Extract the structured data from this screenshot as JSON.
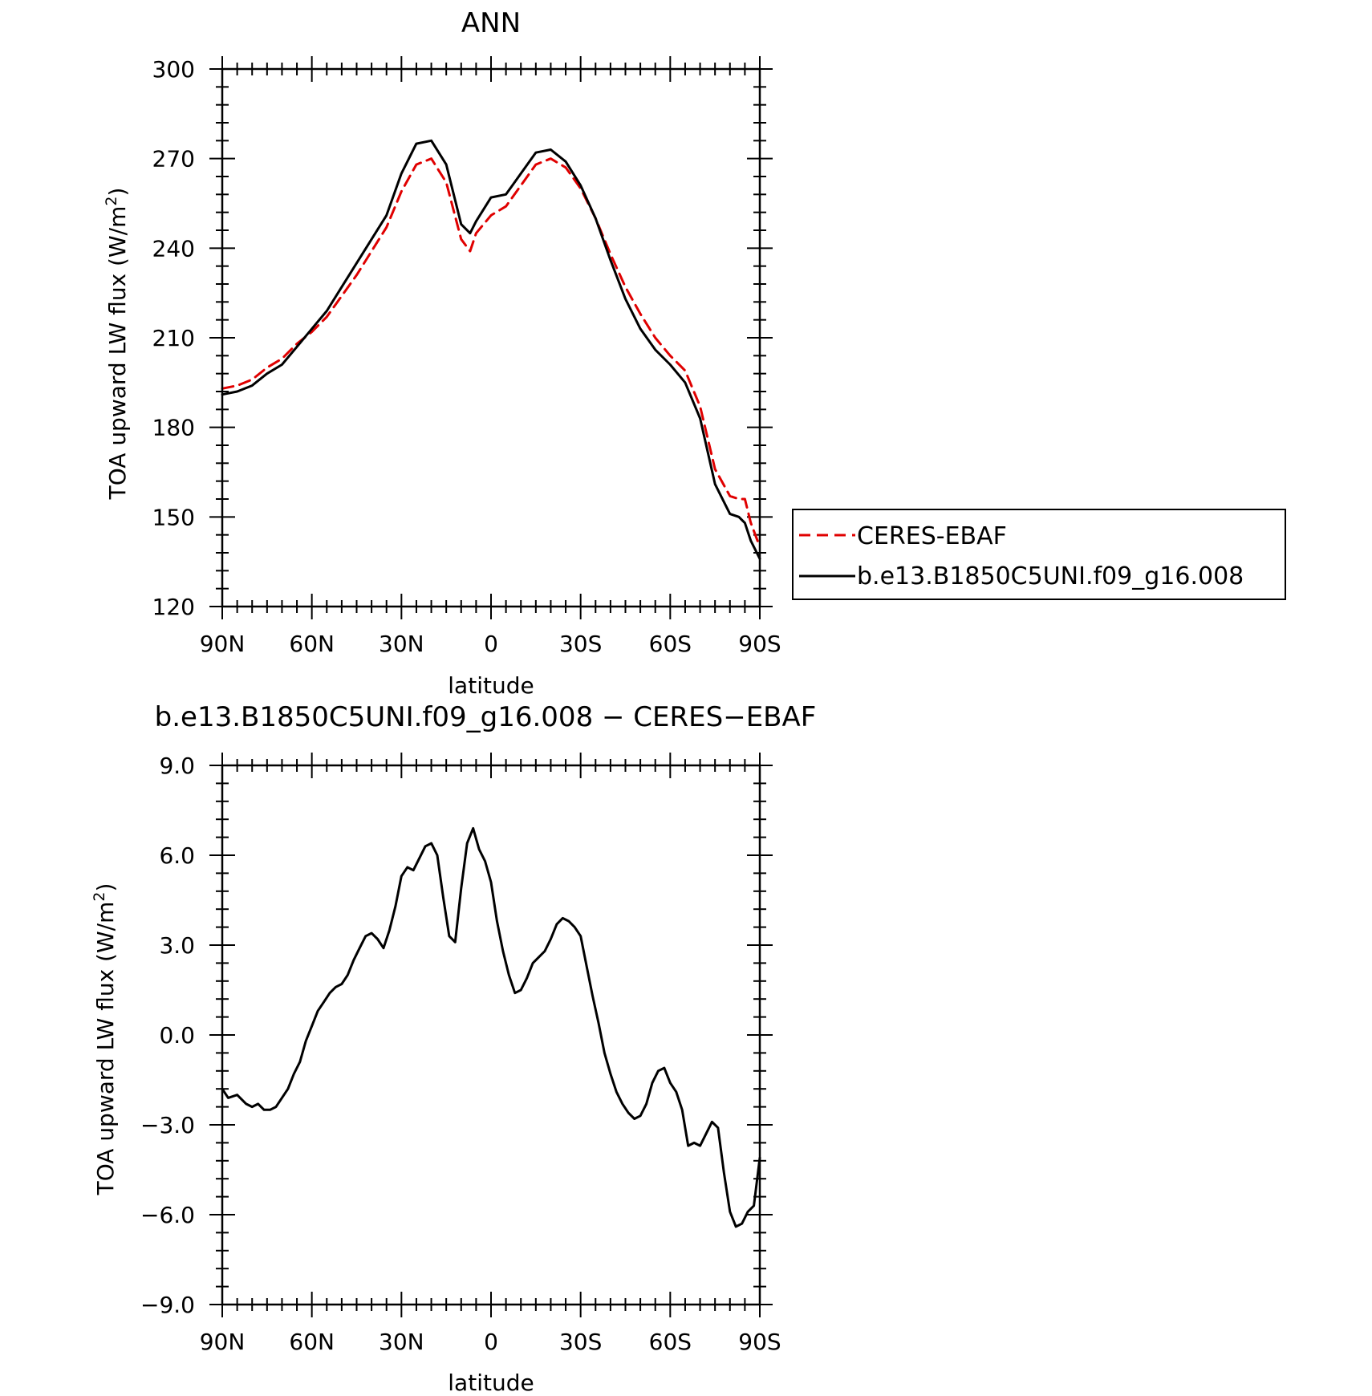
{
  "chart_data": [
    {
      "type": "line",
      "title": "ANN",
      "xlabel": "latitude",
      "ylabel": "TOA upward LW flux (W/m",
      "ylabel_sup": "2",
      "ylabel_end": ")",
      "xlim": [
        90,
        -90
      ],
      "ylim": [
        120,
        300
      ],
      "x_ticks": [
        90,
        60,
        30,
        0,
        -30,
        -60,
        -90
      ],
      "x_tick_labels": [
        "90N",
        "60N",
        "30N",
        "0",
        "30S",
        "60S",
        "90S"
      ],
      "y_ticks": [
        120,
        150,
        180,
        210,
        240,
        270,
        300
      ],
      "y_tick_labels": [
        "120",
        "150",
        "180",
        "210",
        "240",
        "270",
        "300"
      ],
      "grid": false,
      "legend": "right",
      "series": [
        {
          "name": "CERES-EBAF",
          "color": "#e00000",
          "dash": "dashed",
          "x": [
            90,
            85,
            80,
            75,
            70,
            65,
            60,
            55,
            50,
            45,
            40,
            35,
            30,
            25,
            20,
            15,
            10,
            7,
            5,
            0,
            -5,
            -10,
            -15,
            -20,
            -25,
            -30,
            -35,
            -40,
            -45,
            -50,
            -55,
            -60,
            -65,
            -70,
            -75,
            -80,
            -83,
            -85,
            -87,
            -90
          ],
          "y": [
            193,
            194,
            196,
            200,
            203,
            208,
            212,
            217,
            224,
            231,
            239,
            247,
            259,
            268,
            270,
            262,
            243,
            239,
            245,
            251,
            254,
            261,
            268,
            270,
            267,
            260,
            250,
            238,
            227,
            218,
            210,
            204,
            199,
            187,
            166,
            157,
            156,
            156,
            148,
            140
          ],
          "values": [
            193,
            194,
            196,
            200,
            203,
            208,
            212,
            217,
            224,
            231,
            239,
            247,
            259,
            268,
            270,
            262,
            243,
            239,
            245,
            251,
            254,
            261,
            268,
            270,
            267,
            260,
            250,
            238,
            227,
            218,
            210,
            204,
            199,
            187,
            166,
            157,
            156,
            156,
            148,
            140
          ]
        },
        {
          "name": "b.e13.B1850C5UNI.f09_g16.008",
          "color": "#000000",
          "dash": "solid",
          "x": [
            90,
            85,
            80,
            75,
            70,
            65,
            60,
            55,
            50,
            45,
            40,
            35,
            30,
            25,
            20,
            15,
            10,
            7,
            5,
            0,
            -5,
            -10,
            -15,
            -20,
            -25,
            -30,
            -35,
            -40,
            -45,
            -50,
            -55,
            -60,
            -65,
            -70,
            -75,
            -80,
            -83,
            -85,
            -87,
            -90
          ],
          "y": [
            191,
            192,
            194,
            198,
            201,
            207,
            213,
            219,
            227,
            235,
            243,
            251,
            265,
            275,
            276,
            268,
            248,
            245,
            249,
            257,
            258,
            265,
            272,
            273,
            269,
            261,
            250,
            236,
            223,
            213,
            206,
            201,
            195,
            183,
            161,
            151,
            150,
            148,
            142,
            136
          ],
          "values": [
            191,
            192,
            194,
            198,
            201,
            207,
            213,
            219,
            227,
            235,
            243,
            251,
            265,
            275,
            276,
            268,
            248,
            245,
            249,
            257,
            258,
            265,
            272,
            273,
            269,
            261,
            250,
            236,
            223,
            213,
            206,
            201,
            195,
            183,
            161,
            151,
            150,
            148,
            142,
            136
          ]
        }
      ]
    },
    {
      "type": "line",
      "title": "b.e13.B1850C5UNI.f09_g16.008 − CERES−EBAF",
      "xlabel": "latitude",
      "ylabel": "TOA upward LW flux (W/m",
      "ylabel_sup": "2",
      "ylabel_end": ")",
      "xlim": [
        90,
        -90
      ],
      "ylim": [
        -9,
        9
      ],
      "x_ticks": [
        90,
        60,
        30,
        0,
        -30,
        -60,
        -90
      ],
      "x_tick_labels": [
        "90N",
        "60N",
        "30N",
        "0",
        "30S",
        "60S",
        "90S"
      ],
      "y_ticks": [
        -9,
        -6,
        -3,
        0,
        3,
        6,
        9
      ],
      "y_tick_labels": [
        "−9.0",
        "−6.0",
        "−3.0",
        "0.0",
        "3.0",
        "6.0",
        "9.0"
      ],
      "grid": false,
      "series": [
        {
          "color": "#000000",
          "dash": "solid",
          "x": [
            90,
            88,
            85,
            82,
            80,
            78,
            76,
            74,
            72,
            70,
            68,
            66,
            64,
            62,
            60,
            58,
            56,
            54,
            52,
            50,
            48,
            46,
            44,
            42,
            40,
            38,
            36,
            34,
            32,
            30,
            28,
            26,
            24,
            22,
            20,
            18,
            16,
            14,
            12,
            10,
            8,
            6,
            4,
            2,
            0,
            -2,
            -4,
            -6,
            -8,
            -10,
            -12,
            -14,
            -16,
            -18,
            -20,
            -22,
            -24,
            -26,
            -28,
            -30,
            -32,
            -34,
            -36,
            -38,
            -40,
            -42,
            -44,
            -46,
            -48,
            -50,
            -52,
            -54,
            -56,
            -58,
            -60,
            -62,
            -64,
            -66,
            -68,
            -70,
            -72,
            -74,
            -76,
            -78,
            -80,
            -82,
            -84,
            -86,
            -88,
            -90
          ],
          "y": [
            -1.8,
            -2.1,
            -2.0,
            -2.3,
            -2.4,
            -2.3,
            -2.5,
            -2.5,
            -2.4,
            -2.1,
            -1.8,
            -1.3,
            -0.9,
            -0.2,
            0.3,
            0.8,
            1.1,
            1.4,
            1.6,
            1.7,
            2.0,
            2.5,
            2.9,
            3.3,
            3.4,
            3.2,
            2.9,
            3.5,
            4.3,
            5.3,
            5.6,
            5.5,
            5.9,
            6.3,
            6.4,
            6.0,
            4.6,
            3.3,
            3.1,
            4.9,
            6.4,
            6.9,
            6.2,
            5.8,
            5.1,
            3.8,
            2.8,
            2.0,
            1.4,
            1.5,
            1.9,
            2.4,
            2.6,
            2.8,
            3.2,
            3.7,
            3.9,
            3.8,
            3.6,
            3.3,
            2.3,
            1.3,
            0.4,
            -0.6,
            -1.3,
            -1.9,
            -2.3,
            -2.6,
            -2.8,
            -2.7,
            -2.3,
            -1.6,
            -1.2,
            -1.1,
            -1.6,
            -1.9,
            -2.5,
            -3.7,
            -3.6,
            -3.7,
            -3.3,
            -2.9,
            -3.1,
            -4.6,
            -5.9,
            -6.4,
            -6.3,
            -5.9,
            -5.7,
            -4.1
          ],
          "values": [
            -1.8,
            -2.1,
            -2.0,
            -2.3,
            -2.4,
            -2.3,
            -2.5,
            -2.5,
            -2.4,
            -2.1,
            -1.8,
            -1.3,
            -0.9,
            -0.2,
            0.3,
            0.8,
            1.1,
            1.4,
            1.6,
            1.7,
            2.0,
            2.5,
            2.9,
            3.3,
            3.4,
            3.2,
            2.9,
            3.5,
            4.3,
            5.3,
            5.6,
            5.5,
            5.9,
            6.3,
            6.4,
            6.0,
            4.6,
            3.3,
            3.1,
            4.9,
            6.4,
            6.9,
            6.2,
            5.8,
            5.1,
            3.8,
            2.8,
            2.0,
            1.4,
            1.5,
            1.9,
            2.4,
            2.6,
            2.8,
            3.2,
            3.7,
            3.9,
            3.8,
            3.6,
            3.3,
            2.3,
            1.3,
            0.4,
            -0.6,
            -1.3,
            -1.9,
            -2.3,
            -2.6,
            -2.8,
            -2.7,
            -2.3,
            -1.6,
            -1.2,
            -1.1,
            -1.6,
            -1.9,
            -2.5,
            -3.7,
            -3.6,
            -3.7,
            -3.3,
            -2.9,
            -3.1,
            -4.6,
            -5.9,
            -6.4,
            -6.3,
            -5.9,
            -5.7,
            -4.1
          ]
        }
      ]
    }
  ]
}
